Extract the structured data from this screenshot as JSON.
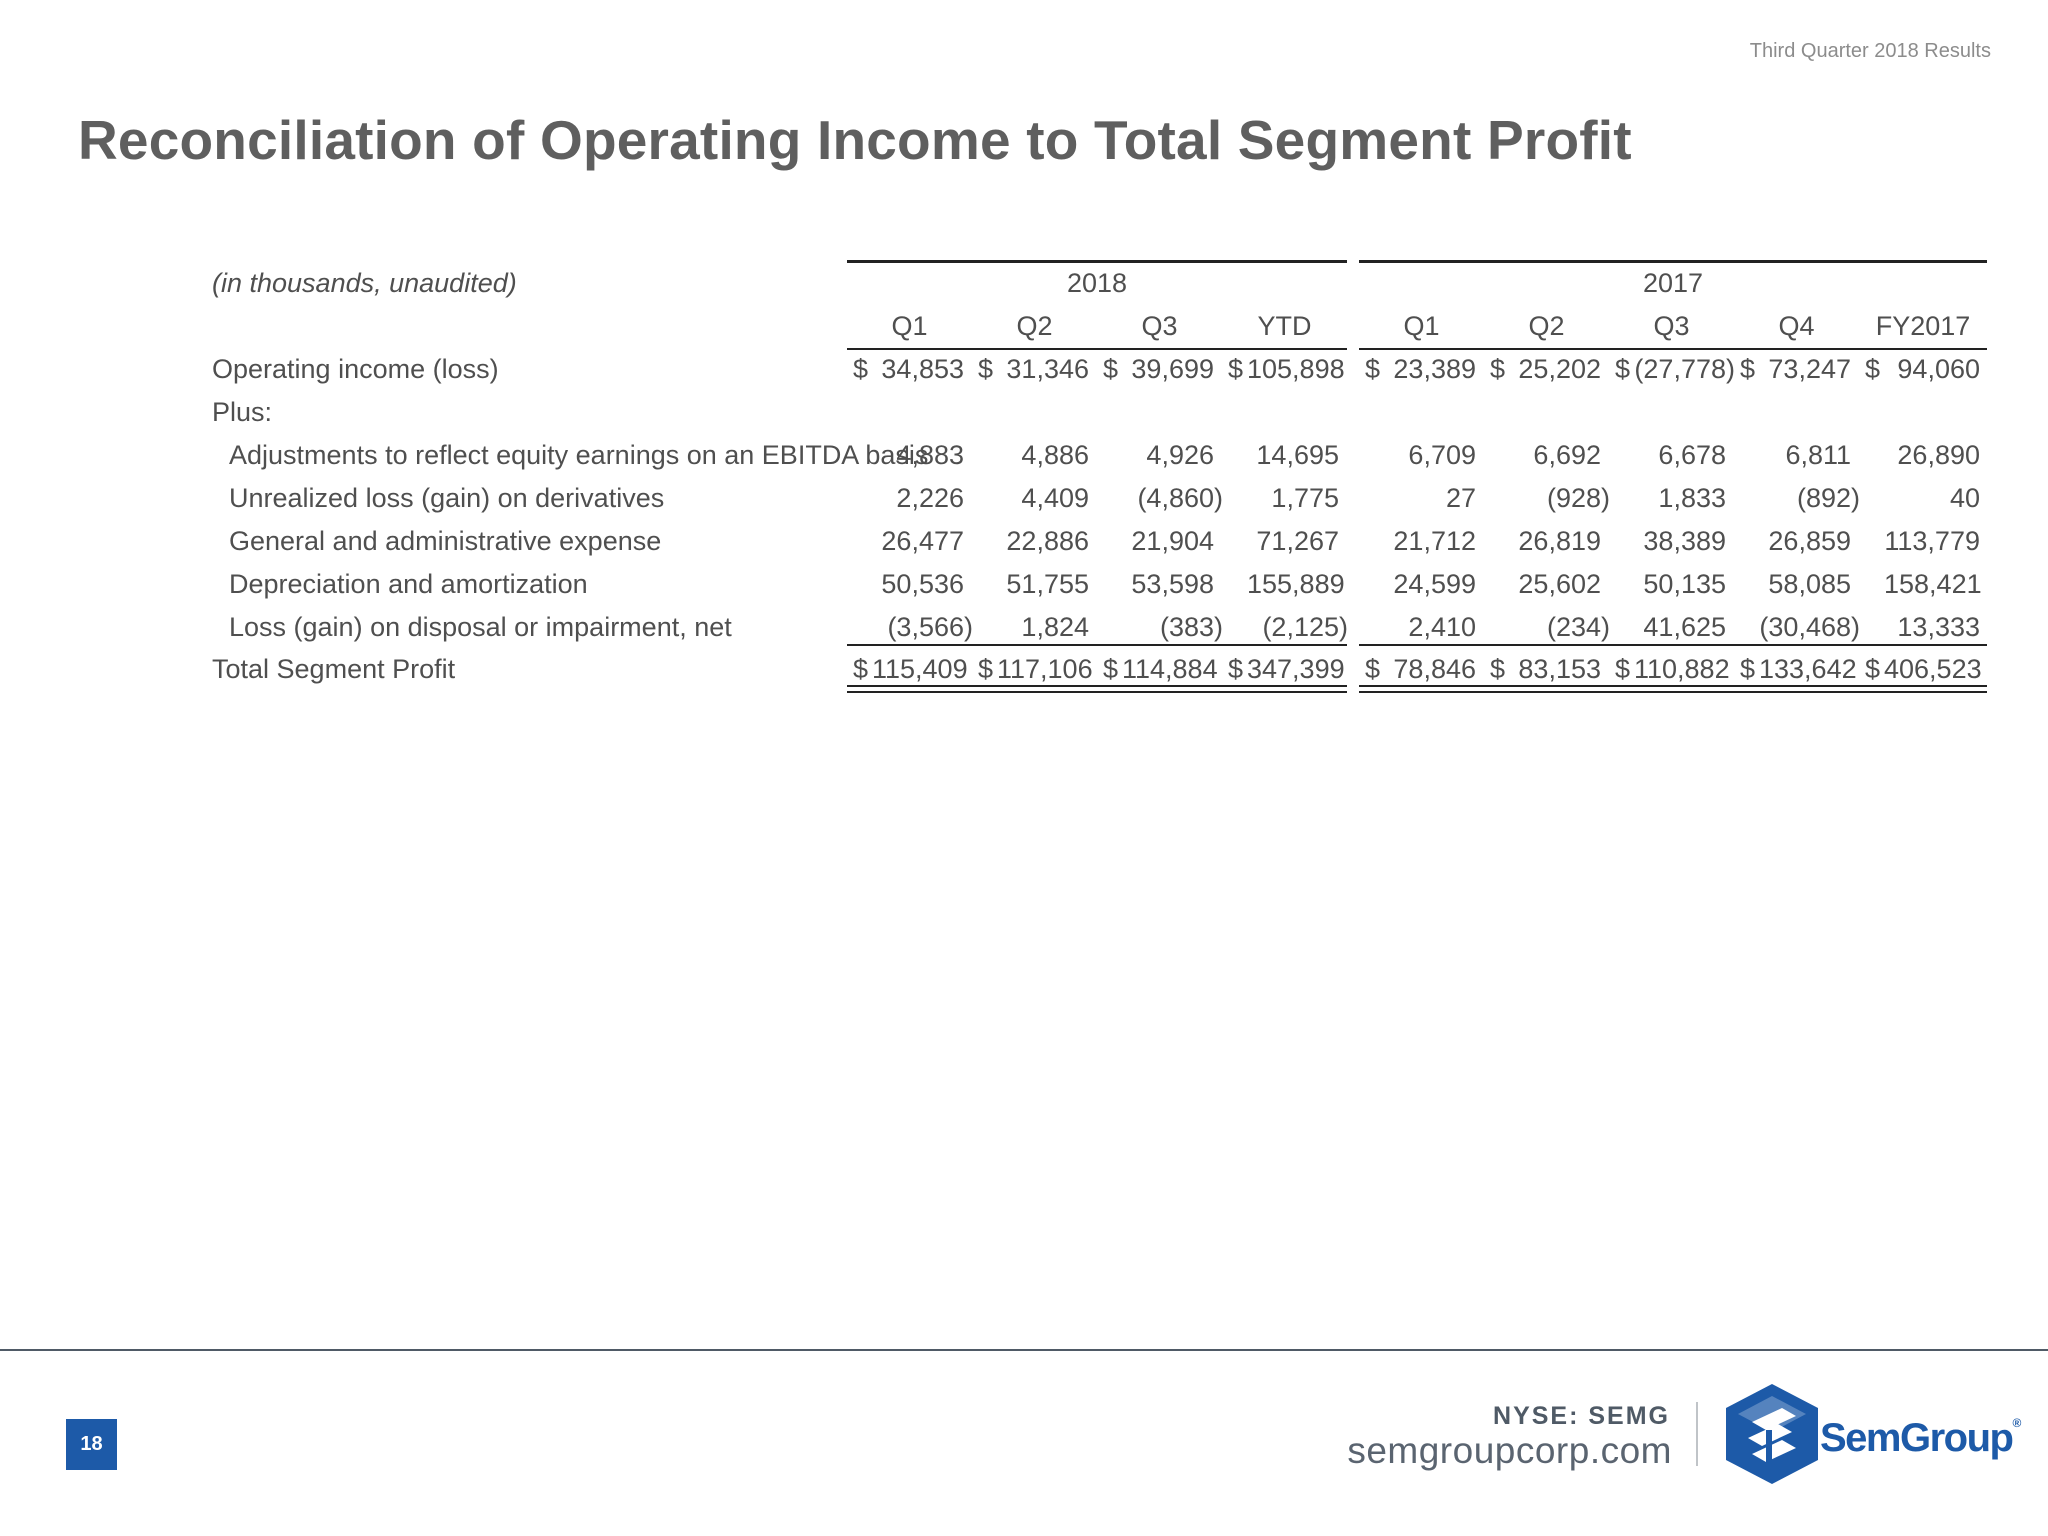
{
  "header": {
    "tag": "Third Quarter 2018 Results"
  },
  "title": "Reconciliation of Operating Income to Total Segment Profit",
  "table": {
    "unit_note": "(in thousands, unaudited)",
    "year_groups": [
      "2018",
      "2017"
    ],
    "columns": [
      "Q1",
      "Q2",
      "Q3",
      "YTD",
      "Q1",
      "Q2",
      "Q3",
      "Q4",
      "FY2017"
    ],
    "plus_label": "Plus:",
    "rows": [
      {
        "label": "Operating income (loss)",
        "values": [
          "34,853",
          "31,346",
          "39,699",
          "105,898",
          "23,389",
          "25,202",
          "(27,778)",
          "73,247",
          "94,060"
        ]
      },
      {
        "label": "Adjustments to reflect equity earnings on an EBITDA basis",
        "values": [
          "4,883",
          "4,886",
          "4,926",
          "14,695",
          "6,709",
          "6,692",
          "6,678",
          "6,811",
          "26,890"
        ]
      },
      {
        "label": "Unrealized loss (gain) on derivatives",
        "values": [
          "2,226",
          "4,409",
          "(4,860)",
          "1,775",
          "27",
          "(928)",
          "1,833",
          "(892)",
          "40"
        ]
      },
      {
        "label": "General and administrative expense",
        "values": [
          "26,477",
          "22,886",
          "21,904",
          "71,267",
          "21,712",
          "26,819",
          "38,389",
          "26,859",
          "113,779"
        ]
      },
      {
        "label": "Depreciation and amortization",
        "values": [
          "50,536",
          "51,755",
          "53,598",
          "155,889",
          "24,599",
          "25,602",
          "50,135",
          "58,085",
          "158,421"
        ]
      },
      {
        "label": "Loss (gain) on disposal or impairment, net",
        "values": [
          "(3,566)",
          "1,824",
          "(383)",
          "(2,125)",
          "2,410",
          "(234)",
          "41,625",
          "(30,468)",
          "13,333"
        ]
      },
      {
        "label": "Total Segment Profit",
        "values": [
          "115,409",
          "117,106",
          "114,884",
          "347,399",
          "78,846",
          "83,153",
          "110,882",
          "133,642",
          "406,523"
        ]
      }
    ],
    "currency_symbol": "$"
  },
  "footer": {
    "page_number": "18",
    "ticker": "NYSE: SEMG",
    "website": "semgroupcorp.com",
    "logo_text": "SemGroup",
    "logo_reg": "®"
  }
}
